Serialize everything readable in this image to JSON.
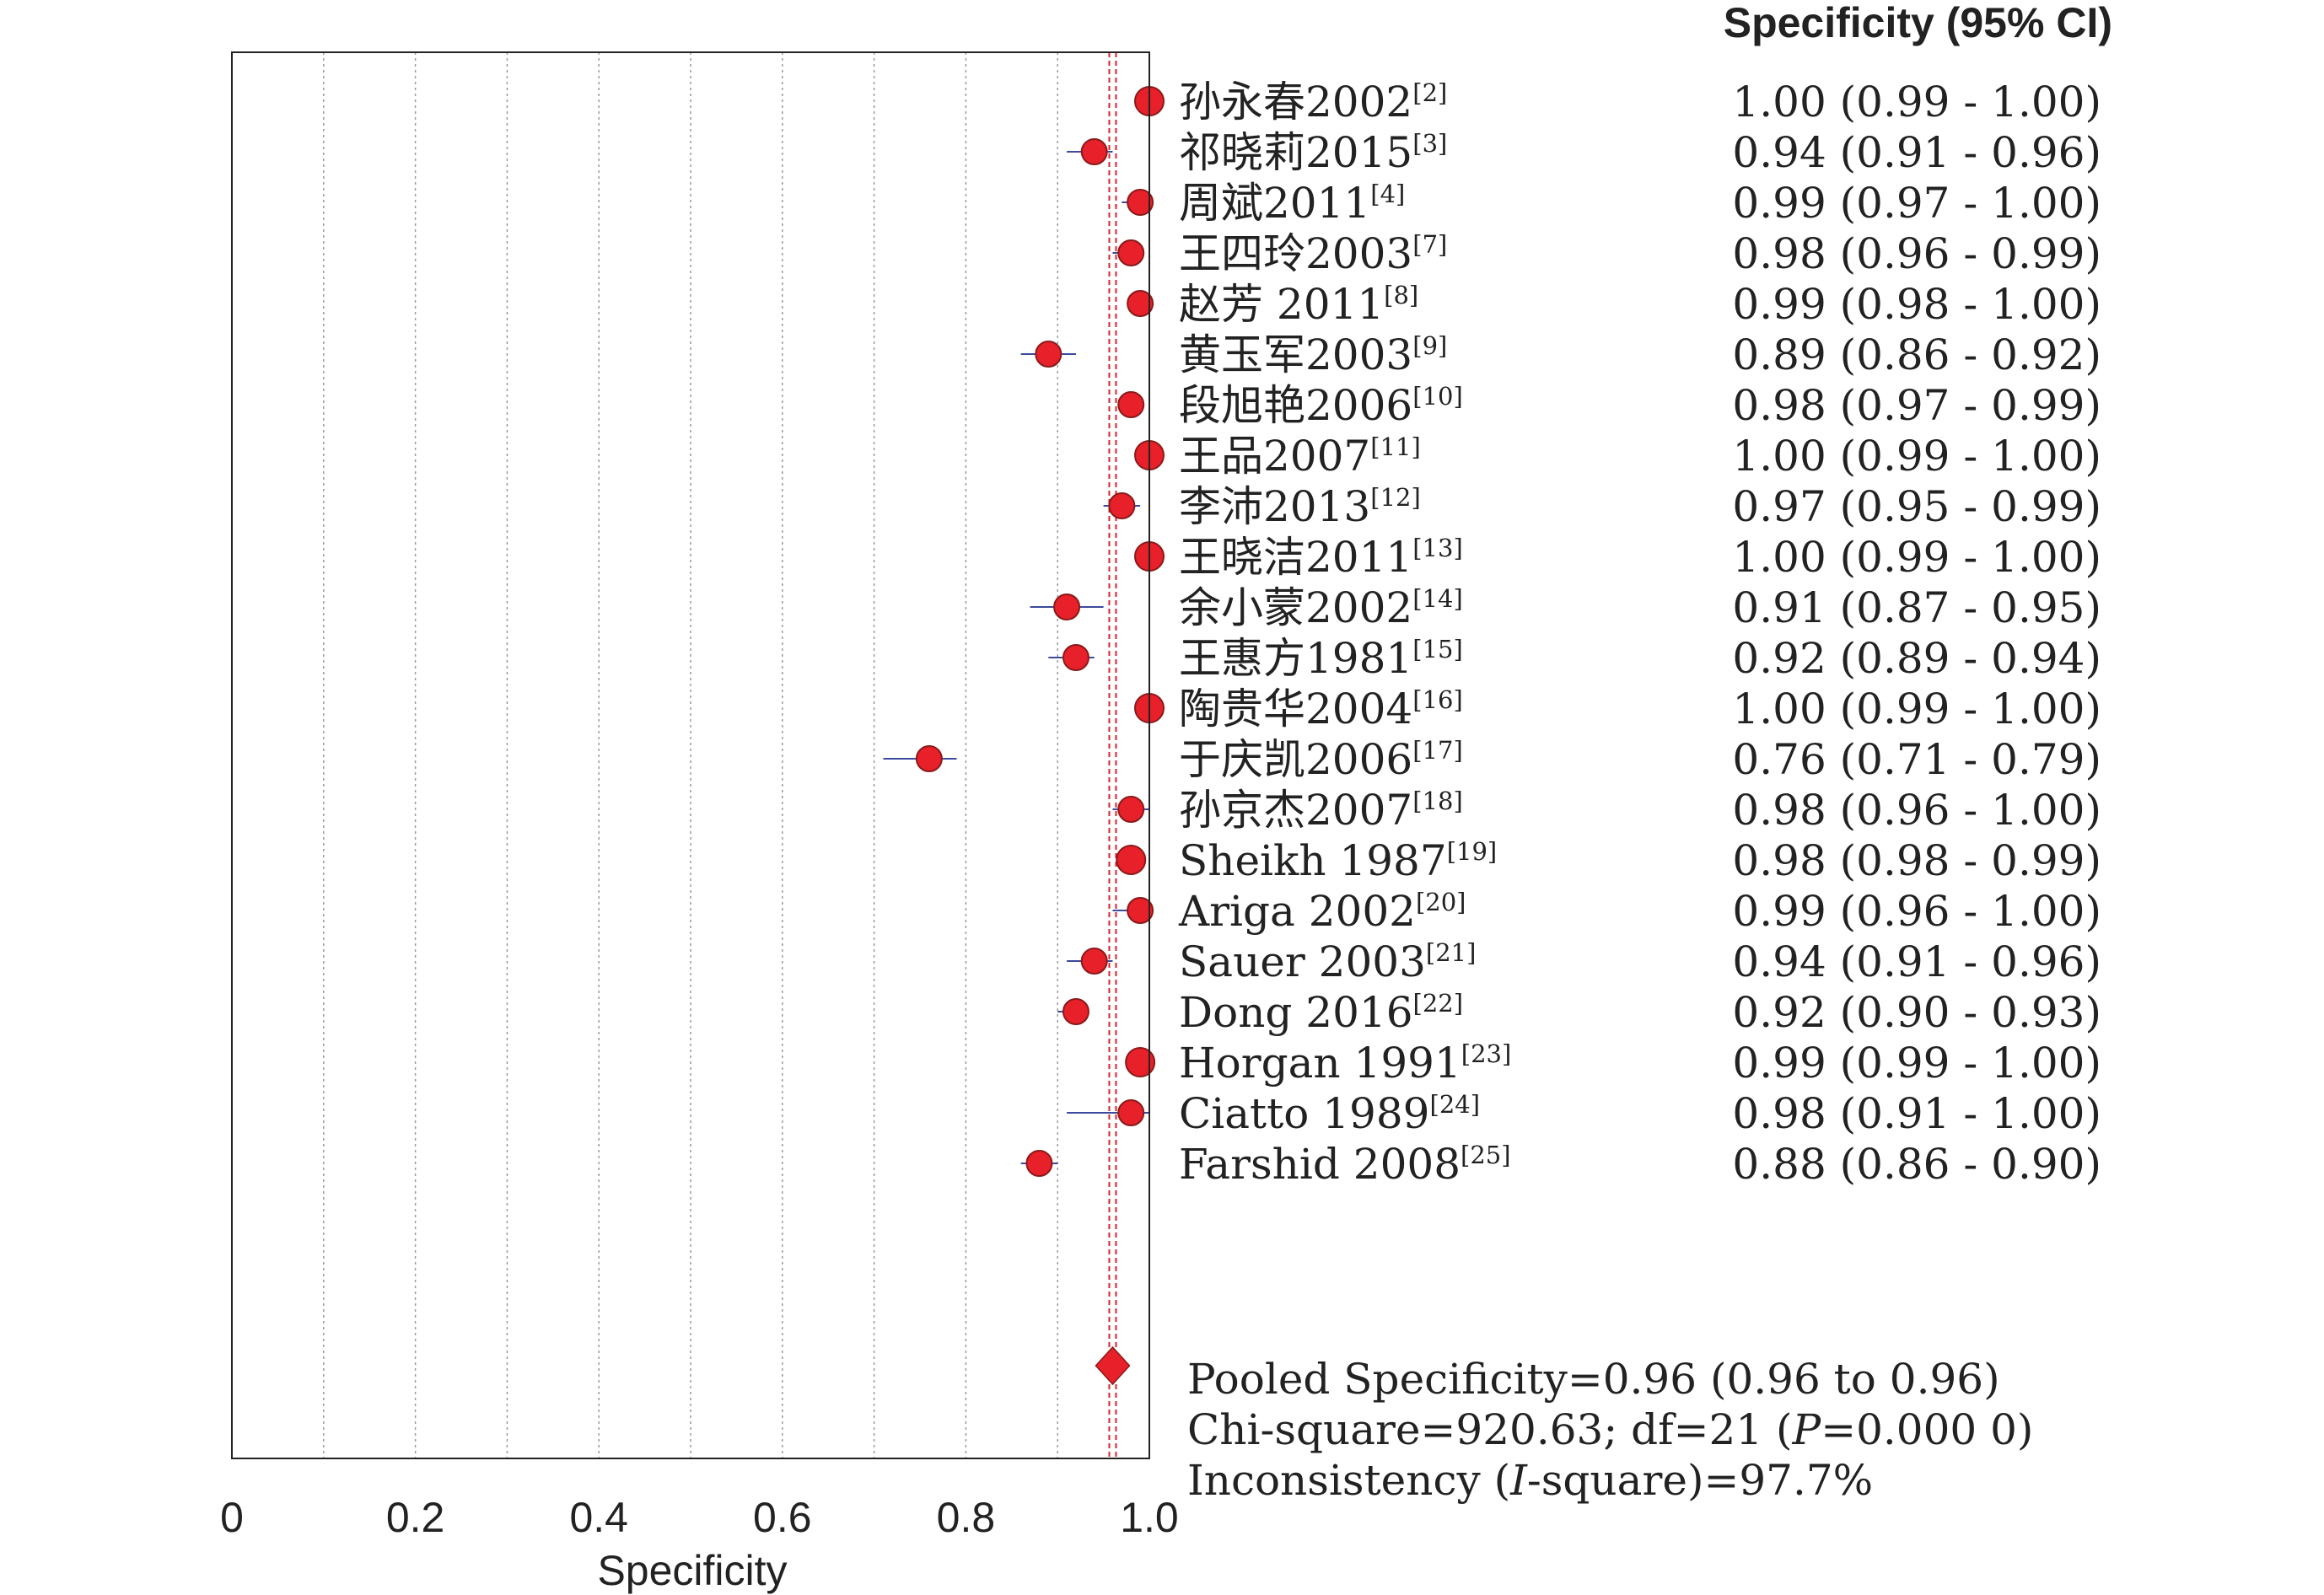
{
  "chart_data": {
    "type": "forest",
    "column_header": "Specificity (95% CI)",
    "xlabel": "Specificity",
    "xlim": [
      0,
      1
    ],
    "x_ticks": [
      "0",
      "0.2",
      "0.4",
      "0.6",
      "0.8",
      "1.0"
    ],
    "grid": "vertical dotted at 0.1 intervals",
    "studies": [
      {
        "name": "孙永春2002",
        "ref": "[2]",
        "estimate": 1.0,
        "lower": 0.99,
        "upper": 1.0,
        "ci_text": "1.00 (0.99 - 1.00)"
      },
      {
        "name": "祁晓莉2015",
        "ref": "[3]",
        "estimate": 0.94,
        "lower": 0.91,
        "upper": 0.96,
        "ci_text": "0.94 (0.91 - 0.96)"
      },
      {
        "name": "周斌2011",
        "ref": "[4]",
        "estimate": 0.99,
        "lower": 0.97,
        "upper": 1.0,
        "ci_text": "0.99 (0.97 - 1.00)"
      },
      {
        "name": "王四玲2003",
        "ref": "[7]",
        "estimate": 0.98,
        "lower": 0.96,
        "upper": 0.99,
        "ci_text": "0.98 (0.96 - 0.99)"
      },
      {
        "name": "赵芳 2011",
        "ref": "[8]",
        "estimate": 0.99,
        "lower": 0.98,
        "upper": 1.0,
        "ci_text": "0.99 (0.98 - 1.00)"
      },
      {
        "name": "黄玉军2003",
        "ref": "[9]",
        "estimate": 0.89,
        "lower": 0.86,
        "upper": 0.92,
        "ci_text": "0.89 (0.86 - 0.92)"
      },
      {
        "name": "段旭艳2006",
        "ref": "[10]",
        "estimate": 0.98,
        "lower": 0.97,
        "upper": 0.99,
        "ci_text": "0.98 (0.97 - 0.99)"
      },
      {
        "name": "王品2007",
        "ref": "[11]",
        "estimate": 1.0,
        "lower": 0.99,
        "upper": 1.0,
        "ci_text": "1.00 (0.99 - 1.00)"
      },
      {
        "name": "李沛2013",
        "ref": "[12]",
        "estimate": 0.97,
        "lower": 0.95,
        "upper": 0.99,
        "ci_text": "0.97 (0.95 - 0.99)"
      },
      {
        "name": "王晓洁2011",
        "ref": "[13]",
        "estimate": 1.0,
        "lower": 0.99,
        "upper": 1.0,
        "ci_text": "1.00 (0.99 - 1.00)"
      },
      {
        "name": "余小蒙2002",
        "ref": "[14]",
        "estimate": 0.91,
        "lower": 0.87,
        "upper": 0.95,
        "ci_text": "0.91 (0.87 - 0.95)"
      },
      {
        "name": "王惠方1981",
        "ref": "[15]",
        "estimate": 0.92,
        "lower": 0.89,
        "upper": 0.94,
        "ci_text": "0.92 (0.89 - 0.94)"
      },
      {
        "name": "陶贵华2004",
        "ref": "[16]",
        "estimate": 1.0,
        "lower": 0.99,
        "upper": 1.0,
        "ci_text": "1.00 (0.99 - 1.00)"
      },
      {
        "name": "于庆凯2006",
        "ref": "[17]",
        "estimate": 0.76,
        "lower": 0.71,
        "upper": 0.79,
        "ci_text": "0.76 (0.71 - 0.79)"
      },
      {
        "name": "孙京杰2007",
        "ref": "[18]",
        "estimate": 0.98,
        "lower": 0.96,
        "upper": 1.0,
        "ci_text": "0.98 (0.96 - 1.00)"
      },
      {
        "name": "Sheikh 1987",
        "ref": "[19]",
        "estimate": 0.98,
        "lower": 0.98,
        "upper": 0.99,
        "ci_text": "0.98 (0.98 - 0.99)"
      },
      {
        "name": "Ariga 2002",
        "ref": "[20]",
        "estimate": 0.99,
        "lower": 0.96,
        "upper": 1.0,
        "ci_text": "0.99 (0.96 - 1.00)"
      },
      {
        "name": "Sauer 2003",
        "ref": "[21]",
        "estimate": 0.94,
        "lower": 0.91,
        "upper": 0.96,
        "ci_text": "0.94 (0.91 - 0.96)"
      },
      {
        "name": "Dong 2016",
        "ref": "[22]",
        "estimate": 0.92,
        "lower": 0.9,
        "upper": 0.93,
        "ci_text": "0.92 (0.90 - 0.93)"
      },
      {
        "name": "Horgan 1991",
        "ref": "[23]",
        "estimate": 0.99,
        "lower": 0.99,
        "upper": 1.0,
        "ci_text": "0.99 (0.99 - 1.00)"
      },
      {
        "name": "Ciatto 1989",
        "ref": "[24]",
        "estimate": 0.98,
        "lower": 0.91,
        "upper": 1.0,
        "ci_text": "0.98 (0.91 - 1.00)"
      },
      {
        "name": "Farshid 2008",
        "ref": "[25]",
        "estimate": 0.88,
        "lower": 0.86,
        "upper": 0.9,
        "ci_text": "0.88 (0.86 - 0.90)"
      }
    ],
    "pooled": {
      "estimate": 0.96,
      "lower": 0.96,
      "upper": 0.96,
      "line1": "Pooled Specificity=0.96 (0.96 to 0.96)",
      "line2_pre": "Chi-square=920.63; df=21 (",
      "line2_italic": "P",
      "line2_post": "=0.000 0)",
      "line3_pre": "Inconsistency (",
      "line3_italic": "I",
      "line3_post": "-square)=97.7%"
    },
    "colors": {
      "marker_fill": "#e8202a",
      "marker_stroke": "#8b1a1a",
      "ci_line": "#3b4a9c",
      "pooled_line": "#d9232e",
      "grid": "#9a9a9a",
      "axis": "#222222"
    }
  }
}
